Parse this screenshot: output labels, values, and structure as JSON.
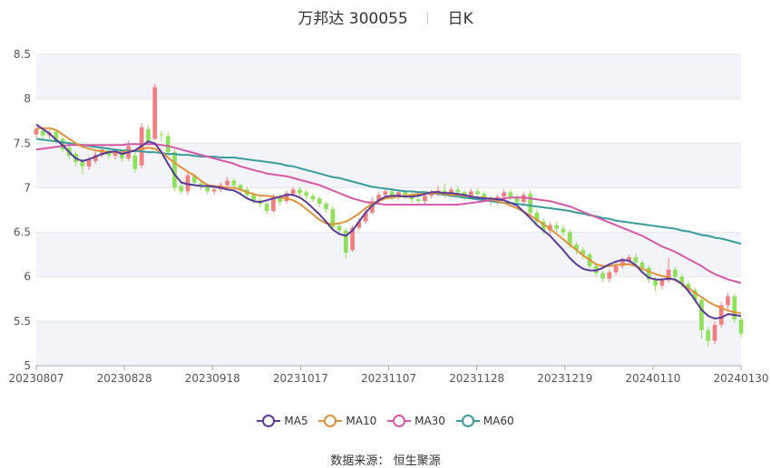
{
  "title": {
    "stock": "万邦达 300055",
    "period": "日K"
  },
  "source_label": "数据来源：",
  "source_name": "恒生聚源",
  "colors": {
    "up": "#f07f7f",
    "down": "#8fe05b",
    "ma5": "#5a3a9a",
    "ma10": "#e0933a",
    "ma30": "#d659a8",
    "ma60": "#3a9c9c",
    "band": "#f3f4f9",
    "grid": "#e6e6e6"
  },
  "chart_data": {
    "type": "candlestick",
    "x_tick_labels": [
      "20230807",
      "20230828",
      "20230918",
      "20231017",
      "20231107",
      "20231128",
      "20231219",
      "20240110",
      "20240130"
    ],
    "ylim": [
      5,
      8.5
    ],
    "y_ticks": [
      5,
      5.5,
      6,
      6.5,
      7,
      7.5,
      8,
      8.5
    ],
    "legend": [
      "MA5",
      "MA10",
      "MA30",
      "MA60"
    ],
    "candles": [
      [
        7.6,
        7.66,
        7.56,
        7.68
      ],
      [
        7.64,
        7.59,
        7.54,
        7.67
      ],
      [
        7.59,
        7.62,
        7.55,
        7.65
      ],
      [
        7.63,
        7.53,
        7.5,
        7.66
      ],
      [
        7.55,
        7.43,
        7.4,
        7.57
      ],
      [
        7.45,
        7.36,
        7.32,
        7.48
      ],
      [
        7.38,
        7.29,
        7.24,
        7.41
      ],
      [
        7.3,
        7.24,
        7.15,
        7.33
      ],
      [
        7.24,
        7.31,
        7.2,
        7.35
      ],
      [
        7.3,
        7.37,
        7.27,
        7.41
      ],
      [
        7.37,
        7.43,
        7.34,
        7.47
      ],
      [
        7.42,
        7.36,
        7.32,
        7.46
      ],
      [
        7.36,
        7.4,
        7.32,
        7.44
      ],
      [
        7.39,
        7.33,
        7.29,
        7.43
      ],
      [
        7.33,
        7.47,
        7.3,
        7.53
      ],
      [
        7.36,
        7.21,
        7.17,
        7.4
      ],
      [
        7.25,
        7.68,
        7.22,
        7.73
      ],
      [
        7.66,
        7.52,
        7.48,
        7.7
      ],
      [
        7.55,
        8.13,
        7.53,
        8.17
      ],
      [
        7.6,
        7.59,
        7.52,
        7.64
      ],
      [
        7.58,
        7.4,
        7.36,
        7.62
      ],
      [
        7.4,
        7.0,
        6.96,
        7.43
      ],
      [
        7.02,
        6.96,
        6.93,
        7.06
      ],
      [
        6.96,
        7.14,
        6.92,
        7.18
      ],
      [
        7.13,
        7.06,
        7.02,
        7.16
      ],
      [
        7.05,
        7.02,
        6.98,
        7.09
      ],
      [
        7.02,
        6.96,
        6.93,
        7.05
      ],
      [
        6.96,
        6.98,
        6.92,
        7.02
      ],
      [
        6.98,
        7.03,
        6.95,
        7.06
      ],
      [
        7.03,
        7.08,
        7.0,
        7.12
      ],
      [
        7.08,
        7.03,
        6.99,
        7.11
      ],
      [
        7.03,
        6.97,
        6.93,
        7.05
      ],
      [
        6.98,
        6.92,
        6.88,
        7.01
      ],
      [
        6.92,
        6.86,
        6.82,
        6.95
      ],
      [
        6.86,
        6.82,
        6.78,
        6.89
      ],
      [
        6.82,
        6.74,
        6.7,
        6.85
      ],
      [
        6.74,
        6.9,
        6.72,
        6.93
      ],
      [
        6.89,
        6.84,
        6.8,
        6.92
      ],
      [
        6.85,
        6.94,
        6.82,
        6.97
      ],
      [
        6.93,
        6.98,
        6.9,
        7.01
      ],
      [
        6.98,
        6.94,
        6.9,
        7.01
      ],
      [
        6.95,
        6.91,
        6.87,
        6.98
      ],
      [
        6.91,
        6.87,
        6.84,
        6.94
      ],
      [
        6.88,
        6.82,
        6.78,
        6.9
      ],
      [
        6.82,
        6.76,
        6.72,
        6.85
      ],
      [
        6.76,
        6.55,
        6.52,
        6.79
      ],
      [
        6.57,
        6.52,
        6.48,
        6.6
      ],
      [
        6.52,
        6.27,
        6.2,
        6.55
      ],
      [
        6.3,
        6.55,
        6.28,
        6.58
      ],
      [
        6.55,
        6.62,
        6.52,
        6.66
      ],
      [
        6.62,
        6.72,
        6.59,
        6.76
      ],
      [
        6.72,
        6.85,
        6.7,
        6.89
      ],
      [
        6.85,
        6.92,
        6.82,
        6.95
      ],
      [
        6.92,
        6.96,
        6.88,
        6.99
      ],
      [
        6.96,
        6.9,
        6.86,
        6.99
      ],
      [
        6.9,
        6.95,
        6.87,
        6.98
      ],
      [
        6.95,
        6.92,
        6.88,
        6.98
      ],
      [
        6.92,
        6.87,
        6.83,
        6.95
      ],
      [
        6.87,
        6.85,
        6.81,
        6.91
      ],
      [
        6.85,
        6.91,
        6.82,
        6.94
      ],
      [
        6.91,
        6.94,
        6.88,
        6.98
      ],
      [
        6.94,
        6.97,
        6.9,
        7.02
      ],
      [
        6.97,
        6.92,
        6.88,
        7.05
      ],
      [
        6.92,
        6.98,
        6.89,
        7.01
      ],
      [
        6.98,
        6.95,
        6.91,
        7.02
      ],
      [
        6.95,
        6.9,
        6.86,
        6.98
      ],
      [
        6.9,
        6.96,
        6.87,
        6.99
      ],
      [
        6.96,
        6.93,
        6.89,
        6.99
      ],
      [
        6.93,
        6.88,
        6.84,
        6.96
      ],
      [
        6.88,
        6.84,
        6.79,
        6.91
      ],
      [
        6.84,
        6.9,
        6.81,
        6.93
      ],
      [
        6.9,
        6.95,
        6.87,
        6.98
      ],
      [
        6.95,
        6.9,
        6.86,
        6.98
      ],
      [
        6.9,
        6.84,
        6.8,
        6.93
      ],
      [
        6.84,
        6.92,
        6.81,
        6.95
      ],
      [
        6.93,
        6.72,
        6.68,
        6.97
      ],
      [
        6.72,
        6.62,
        6.58,
        6.76
      ],
      [
        6.62,
        6.52,
        6.48,
        6.66
      ],
      [
        6.52,
        6.58,
        6.48,
        6.61
      ],
      [
        6.58,
        6.54,
        6.5,
        6.62
      ],
      [
        6.54,
        6.5,
        6.46,
        6.58
      ],
      [
        6.5,
        6.36,
        6.32,
        6.53
      ],
      [
        6.36,
        6.3,
        6.25,
        6.39
      ],
      [
        6.3,
        6.25,
        6.2,
        6.33
      ],
      [
        6.25,
        6.12,
        6.08,
        6.28
      ],
      [
        6.12,
        6.04,
        6.0,
        6.15
      ],
      [
        6.04,
        5.98,
        5.94,
        6.07
      ],
      [
        5.98,
        6.05,
        5.94,
        6.08
      ],
      [
        6.05,
        6.12,
        6.02,
        6.16
      ],
      [
        6.12,
        6.18,
        6.09,
        6.22
      ],
      [
        6.18,
        6.22,
        6.15,
        6.25
      ],
      [
        6.22,
        6.16,
        6.12,
        6.26
      ],
      [
        6.16,
        6.1,
        6.06,
        6.19
      ],
      [
        6.1,
        5.97,
        5.93,
        6.13
      ],
      [
        5.97,
        5.9,
        5.84,
        6.0
      ],
      [
        5.9,
        5.96,
        5.86,
        5.99
      ],
      [
        5.96,
        6.08,
        5.93,
        6.21
      ],
      [
        6.08,
        6.0,
        5.96,
        6.11
      ],
      [
        6.0,
        5.92,
        5.88,
        6.03
      ],
      [
        5.92,
        5.85,
        5.8,
        5.95
      ],
      [
        5.85,
        5.74,
        5.7,
        5.88
      ],
      [
        5.74,
        5.4,
        5.3,
        5.77
      ],
      [
        5.4,
        5.28,
        5.22,
        5.44
      ],
      [
        5.28,
        5.46,
        5.24,
        5.5
      ],
      [
        5.46,
        5.68,
        5.43,
        5.72
      ],
      [
        5.68,
        5.78,
        5.64,
        5.82
      ],
      [
        5.78,
        5.52,
        5.48,
        5.81
      ],
      [
        5.52,
        5.36,
        5.32,
        5.55
      ]
    ],
    "ma5": [
      7.71,
      7.66,
      7.61,
      7.54,
      7.48,
      7.4,
      7.33,
      7.3,
      7.32,
      7.35,
      7.38,
      7.4,
      7.41,
      7.38,
      7.4,
      7.42,
      7.47,
      7.52,
      7.5,
      7.4,
      7.27,
      7.15,
      7.06,
      7.04,
      7.03,
      7.02,
      7.02,
      7.01,
      7.0,
      6.98,
      6.97,
      6.93,
      6.88,
      6.85,
      6.84,
      6.86,
      6.88,
      6.9,
      6.92,
      6.92,
      6.89,
      6.84,
      6.77,
      6.7,
      6.62,
      6.53,
      6.48,
      6.46,
      6.52,
      6.62,
      6.72,
      6.8,
      6.86,
      6.9,
      6.91,
      6.91,
      6.9,
      6.9,
      6.91,
      6.93,
      6.95,
      6.95,
      6.94,
      6.94,
      6.93,
      6.92,
      6.9,
      6.89,
      6.88,
      6.88,
      6.87,
      6.86,
      6.83,
      6.8,
      6.73,
      6.66,
      6.58,
      6.52,
      6.46,
      6.38,
      6.3,
      6.21,
      6.14,
      6.09,
      6.07,
      6.07,
      6.1,
      6.14,
      6.17,
      6.19,
      6.18,
      6.13,
      6.05,
      5.99,
      5.97,
      5.97,
      5.98,
      5.97,
      5.92,
      5.84,
      5.74,
      5.63,
      5.56,
      5.53,
      5.54,
      5.58,
      5.57,
      5.56
    ],
    "ma10": [
      7.67,
      7.67,
      7.67,
      7.65,
      7.6,
      7.55,
      7.5,
      7.46,
      7.44,
      7.42,
      7.41,
      7.4,
      7.4,
      7.4,
      7.41,
      7.42,
      7.44,
      7.45,
      7.44,
      7.4,
      7.34,
      7.28,
      7.23,
      7.18,
      7.14,
      7.08,
      7.03,
      7.02,
      7.01,
      7.0,
      7.0,
      6.98,
      6.95,
      6.93,
      6.91,
      6.91,
      6.9,
      6.89,
      6.88,
      6.86,
      6.82,
      6.76,
      6.7,
      6.64,
      6.6,
      6.59,
      6.6,
      6.62,
      6.66,
      6.71,
      6.77,
      6.82,
      6.85,
      6.88,
      6.89,
      6.9,
      6.91,
      6.92,
      6.93,
      6.93,
      6.94,
      6.94,
      6.93,
      6.92,
      6.92,
      6.91,
      6.9,
      6.89,
      6.89,
      6.87,
      6.85,
      6.83,
      6.8,
      6.77,
      6.73,
      6.69,
      6.64,
      6.59,
      6.54,
      6.48,
      6.42,
      6.36,
      6.3,
      6.24,
      6.19,
      6.14,
      6.12,
      6.12,
      6.13,
      6.14,
      6.14,
      6.12,
      6.09,
      6.06,
      6.03,
      6.01,
      5.99,
      5.96,
      5.92,
      5.87,
      5.82,
      5.77,
      5.72,
      5.68,
      5.65,
      5.62,
      5.6,
      5.59
    ],
    "ma30": [
      7.43,
      7.44,
      7.45,
      7.46,
      7.47,
      7.48,
      7.48,
      7.48,
      7.48,
      7.48,
      7.48,
      7.48,
      7.48,
      7.48,
      7.49,
      7.49,
      7.49,
      7.49,
      7.49,
      7.48,
      7.47,
      7.45,
      7.43,
      7.41,
      7.39,
      7.37,
      7.35,
      7.33,
      7.31,
      7.29,
      7.27,
      7.24,
      7.22,
      7.2,
      7.18,
      7.16,
      7.15,
      7.14,
      7.13,
      7.11,
      7.09,
      7.07,
      7.05,
      7.03,
      7.0,
      6.97,
      6.94,
      6.91,
      6.88,
      6.86,
      6.84,
      6.83,
      6.82,
      6.81,
      6.81,
      6.81,
      6.81,
      6.81,
      6.81,
      6.81,
      6.81,
      6.81,
      6.81,
      6.81,
      6.81,
      6.82,
      6.83,
      6.84,
      6.85,
      6.86,
      6.87,
      6.88,
      6.89,
      6.89,
      6.89,
      6.88,
      6.87,
      6.86,
      6.85,
      6.83,
      6.81,
      6.79,
      6.76,
      6.73,
      6.7,
      6.67,
      6.64,
      6.61,
      6.58,
      6.55,
      6.52,
      6.49,
      6.46,
      6.42,
      6.38,
      6.34,
      6.31,
      6.28,
      6.24,
      6.2,
      6.16,
      6.12,
      6.07,
      6.03,
      6.0,
      5.97,
      5.95,
      5.93
    ],
    "ma60": [
      7.55,
      7.54,
      7.53,
      7.52,
      7.51,
      7.5,
      7.49,
      7.48,
      7.47,
      7.46,
      7.45,
      7.44,
      7.43,
      7.42,
      7.42,
      7.41,
      7.41,
      7.4,
      7.4,
      7.39,
      7.38,
      7.38,
      7.37,
      7.37,
      7.36,
      7.35,
      7.35,
      7.35,
      7.34,
      7.34,
      7.34,
      7.33,
      7.32,
      7.31,
      7.3,
      7.29,
      7.28,
      7.27,
      7.25,
      7.24,
      7.22,
      7.2,
      7.18,
      7.16,
      7.14,
      7.12,
      7.11,
      7.09,
      7.07,
      7.05,
      7.03,
      7.01,
      7.0,
      6.99,
      6.98,
      6.97,
      6.96,
      6.96,
      6.95,
      6.95,
      6.94,
      6.93,
      6.92,
      6.91,
      6.9,
      6.89,
      6.88,
      6.87,
      6.86,
      6.85,
      6.84,
      6.83,
      6.83,
      6.82,
      6.81,
      6.8,
      6.79,
      6.78,
      6.77,
      6.76,
      6.75,
      6.74,
      6.72,
      6.71,
      6.69,
      6.68,
      6.66,
      6.65,
      6.63,
      6.62,
      6.61,
      6.6,
      6.59,
      6.58,
      6.57,
      6.56,
      6.55,
      6.54,
      6.52,
      6.51,
      6.49,
      6.47,
      6.46,
      6.44,
      6.43,
      6.41,
      6.39,
      6.37
    ]
  }
}
